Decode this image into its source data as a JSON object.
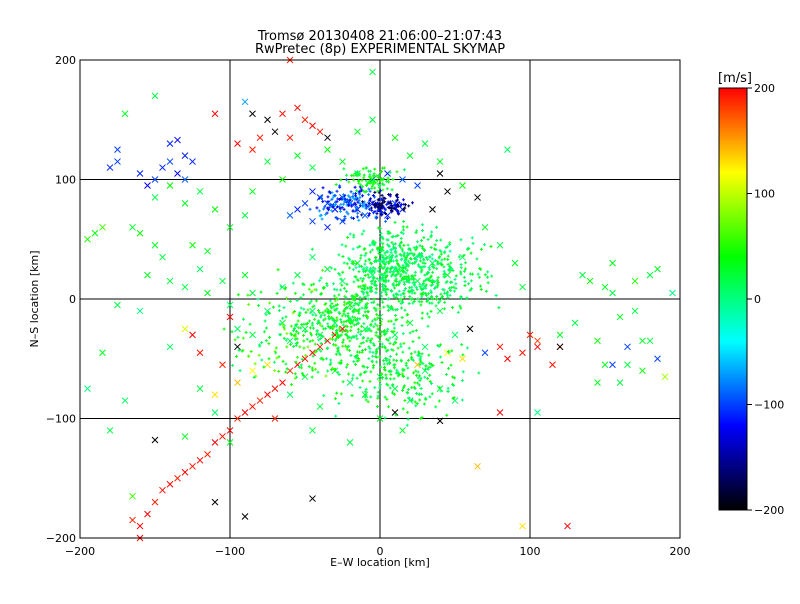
{
  "chart_data": {
    "type": "scatter",
    "title": "Tromsø 20130408 21:06:00–21:07:43",
    "subtitle": "RwPretec (8p) EXPERIMENTAL SKYMAP",
    "xlabel": "E–W location [km]",
    "ylabel": "N–S location [km]",
    "xlim": [
      -200,
      200
    ],
    "ylim": [
      -200,
      200
    ],
    "xticks": [
      -200,
      -100,
      0,
      100,
      200
    ],
    "yticks": [
      -200,
      -100,
      0,
      100,
      200
    ],
    "xtick_labels": [
      "−200",
      "−100",
      "0",
      "100",
      "200"
    ],
    "ytick_labels": [
      "−200",
      "−100",
      "0",
      "100",
      "200"
    ],
    "grid": true,
    "colorbar": {
      "label": "[m/s]",
      "range": [
        -200,
        200
      ],
      "ticks": [
        200,
        100,
        0,
        -100,
        -200
      ],
      "tick_labels": [
        "200",
        "100",
        "0",
        "−100",
        "−200"
      ],
      "stops": [
        "#000000",
        "#0000ff",
        "#00ffff",
        "#00ff00",
        "#ffff00",
        "#ff0000"
      ]
    },
    "markers": {
      "cross": "×",
      "dot": "+"
    },
    "points": [
      [
        -160,
        -190,
        200,
        "x"
      ],
      [
        -155,
        -180,
        200,
        "x"
      ],
      [
        -150,
        -170,
        190,
        "x"
      ],
      [
        -145,
        -160,
        195,
        "x"
      ],
      [
        -140,
        -155,
        200,
        "x"
      ],
      [
        -135,
        -150,
        190,
        "x"
      ],
      [
        -130,
        -145,
        200,
        "x"
      ],
      [
        -125,
        -140,
        195,
        "x"
      ],
      [
        -120,
        -135,
        200,
        "x"
      ],
      [
        -115,
        -130,
        190,
        "x"
      ],
      [
        -110,
        -120,
        200,
        "x"
      ],
      [
        -105,
        -115,
        195,
        "x"
      ],
      [
        -100,
        -110,
        200,
        "x"
      ],
      [
        -95,
        -100,
        190,
        "x"
      ],
      [
        -90,
        -95,
        200,
        "x"
      ],
      [
        -85,
        -90,
        195,
        "x"
      ],
      [
        -80,
        -85,
        190,
        "x"
      ],
      [
        -75,
        -80,
        200,
        "x"
      ],
      [
        -70,
        -75,
        195,
        "x"
      ],
      [
        -65,
        -70,
        200,
        "x"
      ],
      [
        -60,
        -60,
        190,
        "x"
      ],
      [
        -55,
        -55,
        200,
        "x"
      ],
      [
        -50,
        -50,
        195,
        "x"
      ],
      [
        -45,
        -45,
        200,
        "x"
      ],
      [
        -40,
        -40,
        190,
        "x"
      ],
      [
        -35,
        -35,
        200,
        "x"
      ],
      [
        -30,
        -30,
        195,
        "x"
      ],
      [
        -25,
        -25,
        200,
        "x"
      ],
      [
        -160,
        -200,
        200,
        "x"
      ],
      [
        -165,
        -185,
        190,
        "x"
      ],
      [
        125,
        -190,
        200,
        "x"
      ],
      [
        105,
        -40,
        200,
        "x"
      ],
      [
        120,
        -40,
        195,
        "x"
      ],
      [
        -150,
        -118,
        -200,
        "x"
      ],
      [
        -110,
        -170,
        -200,
        "x"
      ],
      [
        -90,
        -182,
        -200,
        "x"
      ],
      [
        -45,
        -167,
        -200,
        "x"
      ],
      [
        40,
        -102,
        -200,
        "x"
      ],
      [
        -165,
        -165,
        60,
        "x"
      ],
      [
        -95,
        -40,
        -200,
        "x"
      ],
      [
        10,
        -95,
        -200,
        "x"
      ],
      [
        -180,
        110,
        -110,
        "x"
      ],
      [
        -175,
        115,
        -100,
        "x"
      ],
      [
        -160,
        105,
        -110,
        "x"
      ],
      [
        -155,
        95,
        -120,
        "x"
      ],
      [
        -150,
        100,
        -100,
        "x"
      ],
      [
        -145,
        110,
        -110,
        "x"
      ],
      [
        -140,
        115,
        -100,
        "x"
      ],
      [
        -135,
        105,
        -120,
        "x"
      ],
      [
        -130,
        100,
        -90,
        "x"
      ],
      [
        -125,
        115,
        -110,
        "x"
      ],
      [
        -140,
        130,
        -110,
        "x"
      ],
      [
        -135,
        133,
        -120,
        "x"
      ],
      [
        -175,
        125,
        -100,
        "x"
      ],
      [
        -130,
        120,
        -110,
        "x"
      ],
      [
        -90,
        165,
        -70,
        "x"
      ],
      [
        -85,
        155,
        -200,
        "x"
      ],
      [
        -75,
        150,
        -200,
        "x"
      ],
      [
        -70,
        140,
        -200,
        "x"
      ],
      [
        -60,
        135,
        195,
        "x"
      ],
      [
        -65,
        155,
        195,
        "x"
      ],
      [
        -55,
        160,
        200,
        "x"
      ],
      [
        -50,
        150,
        190,
        "x"
      ],
      [
        -45,
        145,
        200,
        "x"
      ],
      [
        -40,
        140,
        195,
        "x"
      ],
      [
        -35,
        135,
        -200,
        "x"
      ],
      [
        -110,
        155,
        200,
        "x"
      ],
      [
        -95,
        130,
        200,
        "x"
      ],
      [
        -80,
        135,
        195,
        "x"
      ],
      [
        -85,
        125,
        190,
        "x"
      ],
      [
        -45,
        90,
        -110,
        "x"
      ],
      [
        -40,
        85,
        -110,
        "x"
      ],
      [
        -35,
        80,
        -100,
        "x"
      ],
      [
        -30,
        75,
        -120,
        "x"
      ],
      [
        -25,
        85,
        -110,
        "x"
      ],
      [
        -20,
        80,
        -100,
        "x"
      ],
      [
        -15,
        75,
        -110,
        "x"
      ],
      [
        -10,
        70,
        -90,
        "x"
      ],
      [
        -5,
        80,
        -110,
        "x"
      ],
      [
        0,
        75,
        -120,
        "x"
      ],
      [
        5,
        70,
        -110,
        "x"
      ],
      [
        10,
        80,
        -100,
        "x"
      ],
      [
        15,
        75,
        -110,
        "x"
      ],
      [
        -50,
        80,
        -100,
        "x"
      ],
      [
        -55,
        75,
        -110,
        "x"
      ],
      [
        -60,
        70,
        -90,
        "x"
      ],
      [
        -45,
        65,
        -100,
        "x"
      ],
      [
        -35,
        60,
        -110,
        "x"
      ],
      [
        -25,
        65,
        -100,
        "x"
      ],
      [
        -5,
        100,
        -100,
        "x"
      ],
      [
        5,
        105,
        -110,
        "x"
      ],
      [
        15,
        100,
        -90,
        "x"
      ],
      [
        25,
        95,
        -100,
        "x"
      ],
      [
        40,
        105,
        -200,
        "x"
      ],
      [
        45,
        90,
        -200,
        "x"
      ],
      [
        65,
        85,
        -200,
        "x"
      ],
      [
        35,
        75,
        -200,
        "x"
      ],
      [
        -70,
        -100,
        190,
        "x"
      ],
      [
        -100,
        -15,
        200,
        "x"
      ],
      [
        -125,
        -30,
        200,
        "x"
      ],
      [
        -120,
        -45,
        195,
        "x"
      ],
      [
        -105,
        -55,
        190,
        "x"
      ],
      [
        60,
        -25,
        -200,
        "x"
      ],
      [
        70,
        -45,
        -100,
        "x"
      ],
      [
        80,
        -40,
        195,
        "x"
      ],
      [
        80,
        -95,
        200,
        "x"
      ],
      [
        100,
        -30,
        190,
        "x"
      ],
      [
        95,
        -45,
        195,
        "x"
      ],
      [
        85,
        -50,
        200,
        "x"
      ],
      [
        105,
        -35,
        180,
        "x"
      ],
      [
        115,
        -55,
        195,
        "x"
      ],
      [
        120,
        -40,
        -200,
        "x"
      ],
      [
        155,
        -55,
        -100,
        "x"
      ],
      [
        165,
        -40,
        -100,
        "x"
      ],
      [
        185,
        -50,
        -100,
        "x"
      ],
      [
        170,
        -10,
        20,
        "x"
      ],
      [
        175,
        -35,
        30,
        "x"
      ],
      [
        180,
        -35,
        20,
        "x"
      ],
      [
        160,
        -70,
        20,
        "x"
      ],
      [
        150,
        -55,
        30,
        "x"
      ],
      [
        145,
        -35,
        40,
        "x"
      ],
      [
        165,
        -55,
        20,
        "x"
      ],
      [
        175,
        -60,
        40,
        "x"
      ],
      [
        190,
        -65,
        90,
        "x"
      ],
      [
        130,
        -20,
        20,
        "x"
      ],
      [
        120,
        -30,
        30,
        "x"
      ],
      [
        145,
        -70,
        30,
        "x"
      ],
      [
        155,
        5,
        20,
        "x"
      ],
      [
        135,
        20,
        20,
        "x"
      ],
      [
        140,
        15,
        40,
        "x"
      ],
      [
        150,
        10,
        30,
        "x"
      ],
      [
        160,
        -15,
        30,
        "x"
      ],
      [
        180,
        20,
        20,
        "x"
      ],
      [
        195,
        5,
        0,
        "x"
      ],
      [
        170,
        15,
        50,
        "x"
      ],
      [
        155,
        30,
        30,
        "x"
      ],
      [
        185,
        25,
        30,
        "x"
      ],
      [
        95,
        -190,
        130,
        "x"
      ],
      [
        65,
        -140,
        140,
        "x"
      ],
      [
        105,
        -95,
        0,
        "x"
      ],
      [
        -185,
        60,
        60,
        "x"
      ],
      [
        -190,
        55,
        40,
        "x"
      ],
      [
        -195,
        50,
        50,
        "x"
      ],
      [
        -165,
        60,
        30,
        "x"
      ],
      [
        -160,
        55,
        40,
        "x"
      ],
      [
        -150,
        45,
        30,
        "x"
      ],
      [
        -145,
        35,
        20,
        "x"
      ],
      [
        -125,
        45,
        40,
        "x"
      ],
      [
        -155,
        20,
        30,
        "x"
      ],
      [
        -140,
        15,
        20,
        "x"
      ],
      [
        -115,
        40,
        30,
        "x"
      ],
      [
        -120,
        25,
        10,
        "x"
      ],
      [
        -130,
        10,
        20,
        "x"
      ],
      [
        -115,
        5,
        30,
        "x"
      ],
      [
        -105,
        15,
        20,
        "x"
      ],
      [
        -90,
        20,
        30,
        "x"
      ],
      [
        -85,
        5,
        20,
        "x"
      ],
      [
        -100,
        -5,
        10,
        "x"
      ],
      [
        -95,
        -25,
        10,
        "x"
      ],
      [
        -85,
        -30,
        20,
        "x"
      ],
      [
        -75,
        -10,
        10,
        "x"
      ],
      [
        -65,
        -20,
        20,
        "x"
      ],
      [
        -60,
        -35,
        10,
        "x"
      ],
      [
        -50,
        -25,
        20,
        "x"
      ],
      [
        -45,
        -10,
        10,
        "x"
      ],
      [
        -40,
        -30,
        20,
        "x"
      ],
      [
        -30,
        -20,
        10,
        "x"
      ],
      [
        -20,
        -5,
        20,
        "x"
      ],
      [
        -10,
        -25,
        10,
        "x"
      ],
      [
        0,
        -15,
        20,
        "x"
      ],
      [
        10,
        -30,
        10,
        "x"
      ],
      [
        20,
        -20,
        20,
        "x"
      ],
      [
        30,
        -40,
        10,
        "x"
      ],
      [
        40,
        -10,
        20,
        "x"
      ],
      [
        50,
        -30,
        10,
        "x"
      ],
      [
        -65,
        10,
        10,
        "x"
      ],
      [
        -55,
        20,
        20,
        "x"
      ],
      [
        -45,
        35,
        10,
        "x"
      ],
      [
        -35,
        25,
        20,
        "x"
      ],
      [
        -25,
        15,
        10,
        "x"
      ],
      [
        -15,
        30,
        20,
        "x"
      ],
      [
        -5,
        20,
        10,
        "x"
      ],
      [
        5,
        35,
        20,
        "x"
      ],
      [
        15,
        25,
        10,
        "x"
      ],
      [
        25,
        15,
        20,
        "x"
      ],
      [
        35,
        30,
        10,
        "x"
      ],
      [
        45,
        20,
        20,
        "x"
      ],
      [
        55,
        35,
        10,
        "x"
      ],
      [
        -30,
        -60,
        20,
        "x"
      ],
      [
        -20,
        -70,
        10,
        "x"
      ],
      [
        -10,
        -80,
        20,
        "x"
      ],
      [
        0,
        -65,
        10,
        "x"
      ],
      [
        10,
        -75,
        20,
        "x"
      ],
      [
        20,
        -85,
        10,
        "x"
      ],
      [
        -40,
        -90,
        20,
        "x"
      ],
      [
        -60,
        -80,
        10,
        "x"
      ],
      [
        -50,
        -65,
        20,
        "x"
      ],
      [
        30,
        -60,
        10,
        "x"
      ],
      [
        40,
        -75,
        20,
        "x"
      ],
      [
        50,
        -85,
        10,
        "x"
      ],
      [
        -20,
        -120,
        20,
        "x"
      ],
      [
        0,
        -100,
        30,
        "x"
      ],
      [
        -45,
        -110,
        20,
        "x"
      ],
      [
        15,
        -110,
        30,
        "x"
      ],
      [
        -15,
        105,
        20,
        "x"
      ],
      [
        -25,
        115,
        30,
        "x"
      ],
      [
        -35,
        125,
        40,
        "x"
      ],
      [
        -45,
        110,
        20,
        "x"
      ],
      [
        -55,
        120,
        30,
        "x"
      ],
      [
        -65,
        100,
        40,
        "x"
      ],
      [
        -75,
        115,
        20,
        "x"
      ],
      [
        -85,
        90,
        30,
        "x"
      ],
      [
        -90,
        70,
        20,
        "x"
      ],
      [
        -100,
        60,
        30,
        "x"
      ],
      [
        -110,
        75,
        40,
        "x"
      ],
      [
        -120,
        90,
        20,
        "x"
      ],
      [
        -130,
        80,
        30,
        "x"
      ],
      [
        -140,
        95,
        40,
        "x"
      ],
      [
        -150,
        85,
        20,
        "x"
      ],
      [
        -15,
        140,
        30,
        "x"
      ],
      [
        -5,
        150,
        20,
        "x"
      ],
      [
        10,
        135,
        40,
        "x"
      ],
      [
        20,
        120,
        30,
        "x"
      ],
      [
        30,
        130,
        20,
        "x"
      ],
      [
        40,
        115,
        30,
        "x"
      ],
      [
        55,
        95,
        40,
        "x"
      ],
      [
        70,
        60,
        30,
        "x"
      ],
      [
        80,
        45,
        20,
        "x"
      ],
      [
        90,
        30,
        30,
        "x"
      ],
      [
        95,
        10,
        20,
        "x"
      ],
      [
        85,
        125,
        10,
        "x"
      ],
      [
        -85,
        -60,
        120,
        "x"
      ],
      [
        -110,
        -80,
        130,
        "x"
      ],
      [
        -95,
        -70,
        140,
        "x"
      ],
      [
        -75,
        -55,
        130,
        "x"
      ],
      [
        25,
        -55,
        140,
        "x"
      ],
      [
        45,
        -45,
        120,
        "x"
      ],
      [
        55,
        -50,
        130,
        "x"
      ],
      [
        -130,
        -25,
        110,
        "x"
      ],
      [
        -160,
        -10,
        0,
        "x"
      ],
      [
        -140,
        -40,
        10,
        "x"
      ],
      [
        -175,
        -5,
        20,
        "x"
      ],
      [
        -185,
        -45,
        30,
        "x"
      ],
      [
        -60,
        200,
        190,
        "x"
      ],
      [
        -5,
        190,
        20,
        "x"
      ],
      [
        -150,
        170,
        20,
        "x"
      ],
      [
        -170,
        155,
        30,
        "x"
      ],
      [
        -195,
        -75,
        0,
        "x"
      ],
      [
        -180,
        -110,
        20,
        "x"
      ],
      [
        -170,
        -85,
        10,
        "x"
      ],
      [
        -130,
        -115,
        30,
        "x"
      ],
      [
        -120,
        -75,
        20,
        "x"
      ],
      [
        -110,
        -95,
        10,
        "x"
      ],
      [
        -100,
        -120,
        30,
        "x"
      ]
    ]
  }
}
